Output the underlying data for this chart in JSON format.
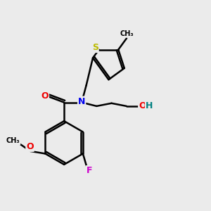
{
  "bg_color": "#ebebeb",
  "atom_colors": {
    "C": "#000000",
    "N": "#0000ee",
    "O": "#ee0000",
    "F": "#cc00cc",
    "S": "#bbbb00",
    "H": "#008080"
  },
  "figsize": [
    3.0,
    3.0
  ],
  "dpi": 100,
  "xlim": [
    0,
    10
  ],
  "ylim": [
    0,
    10
  ]
}
